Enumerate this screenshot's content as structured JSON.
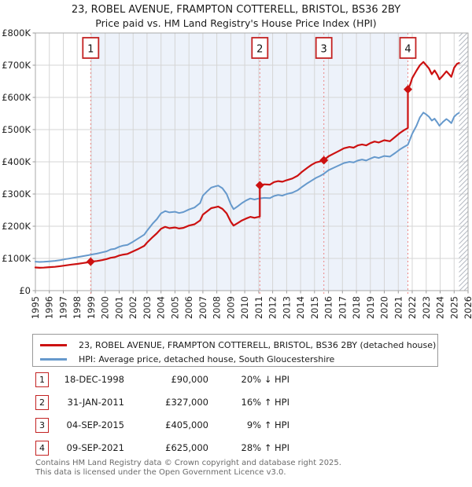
{
  "header": {
    "title_line1": "23, ROBEL AVENUE, FRAMPTON COTTERELL, BRISTOL, BS36 2BY",
    "title_line2": "Price paid vs. HM Land Registry's House Price Index (HPI)"
  },
  "legend": {
    "series1": "23, ROBEL AVENUE, FRAMPTON COTTERELL, BRISTOL, BS36 2BY (detached house)",
    "series2": "HPI: Average price, detached house, South Gloucestershire"
  },
  "transactions": [
    {
      "num": "1",
      "date": "18-DEC-1998",
      "price": "£90,000",
      "pct": "20% ↓ HPI"
    },
    {
      "num": "2",
      "date": "31-JAN-2011",
      "price": "£327,000",
      "pct": "16% ↑ HPI"
    },
    {
      "num": "3",
      "date": "04-SEP-2015",
      "price": "£405,000",
      "pct": "9% ↑ HPI"
    },
    {
      "num": "4",
      "date": "09-SEP-2021",
      "price": "£625,000",
      "pct": "28% ↑ HPI"
    }
  ],
  "footer": {
    "line1": "Contains HM Land Registry data © Crown copyright and database right 2025.",
    "line2": "This data is licensed under the Open Government Licence v3.0."
  },
  "chart_data": {
    "type": "line",
    "title": "23, ROBEL AVENUE, FRAMPTON COTTERELL, BRISTOL, BS36 2BY",
    "subtitle": "Price paid vs. HM Land Registry's House Price Index (HPI)",
    "xlim": [
      1995,
      2026
    ],
    "ylim": [
      0,
      800
    ],
    "grid": true,
    "x_ticks": [
      "1995",
      "1996",
      "1997",
      "1998",
      "1999",
      "2000",
      "2001",
      "2002",
      "2003",
      "2004",
      "2005",
      "2006",
      "2007",
      "2008",
      "2009",
      "2010",
      "2011",
      "2012",
      "2013",
      "2014",
      "2015",
      "2016",
      "2017",
      "2018",
      "2019",
      "2020",
      "2021",
      "2022",
      "2023",
      "2024",
      "2025",
      "2026"
    ],
    "y_ticks": [
      {
        "v": 0,
        "label": "£0"
      },
      {
        "v": 100,
        "label": "£100K"
      },
      {
        "v": 200,
        "label": "£200K"
      },
      {
        "v": 300,
        "label": "£300K"
      },
      {
        "v": 400,
        "label": "£400K"
      },
      {
        "v": 500,
        "label": "£500K"
      },
      {
        "v": 600,
        "label": "£600K"
      },
      {
        "v": 700,
        "label": "£700K"
      },
      {
        "v": 800,
        "label": "£800K"
      }
    ],
    "shaded_region": [
      1998.96,
      2021.69
    ],
    "hatch_region": [
      2025.35,
      2026
    ],
    "colors": {
      "price": "#cc1111",
      "hpi": "#6699cc",
      "sale_line": "#ec8585",
      "shade": "#edf2fa",
      "grid": "#d5d5d5",
      "border": "#a9a9a9",
      "hatch": "#b5bac2",
      "marker_box_border": "#c32222",
      "tick": "#999999",
      "label": "#222222"
    },
    "sales": [
      {
        "label": "1",
        "year": 1998.96,
        "value": 90,
        "date": "18-DEC-1998",
        "price_gbp": 90000
      },
      {
        "label": "2",
        "year": 2011.08,
        "value": 327,
        "date": "31-JAN-2011",
        "price_gbp": 327000
      },
      {
        "label": "3",
        "year": 2015.67,
        "value": 405,
        "date": "04-SEP-2015",
        "price_gbp": 405000
      },
      {
        "label": "4",
        "year": 2021.69,
        "value": 625,
        "date": "09-SEP-2021",
        "price_gbp": 625000
      }
    ],
    "series": [
      {
        "name": "hpi_average_price",
        "color": "#6699cc",
        "width": 2,
        "points": [
          [
            1995.0,
            90
          ],
          [
            1995.3,
            89
          ],
          [
            1995.6,
            89.5
          ],
          [
            1996.0,
            91
          ],
          [
            1996.4,
            92.5
          ],
          [
            1996.8,
            95
          ],
          [
            1997.2,
            98
          ],
          [
            1997.6,
            101
          ],
          [
            1998.0,
            104
          ],
          [
            1998.4,
            107
          ],
          [
            1998.8,
            110
          ],
          [
            1999.0,
            112
          ],
          [
            1999.4,
            115
          ],
          [
            1999.8,
            119
          ],
          [
            2000.1,
            122
          ],
          [
            2000.4,
            128
          ],
          [
            2000.7,
            130
          ],
          [
            2001.0,
            136
          ],
          [
            2001.3,
            140
          ],
          [
            2001.6,
            142
          ],
          [
            2002.0,
            152
          ],
          [
            2002.4,
            163
          ],
          [
            2002.8,
            174
          ],
          [
            2003.0,
            186
          ],
          [
            2003.4,
            208
          ],
          [
            2003.7,
            222
          ],
          [
            2004.0,
            240
          ],
          [
            2004.3,
            247
          ],
          [
            2004.6,
            243
          ],
          [
            2005.0,
            245
          ],
          [
            2005.3,
            241
          ],
          [
            2005.6,
            244
          ],
          [
            2006.0,
            252
          ],
          [
            2006.4,
            258
          ],
          [
            2006.8,
            272
          ],
          [
            2007.0,
            295
          ],
          [
            2007.3,
            308
          ],
          [
            2007.6,
            320
          ],
          [
            2007.9,
            324
          ],
          [
            2008.1,
            326
          ],
          [
            2008.4,
            318
          ],
          [
            2008.7,
            300
          ],
          [
            2009.0,
            268
          ],
          [
            2009.2,
            253
          ],
          [
            2009.5,
            262
          ],
          [
            2009.8,
            272
          ],
          [
            2010.1,
            280
          ],
          [
            2010.4,
            286
          ],
          [
            2010.7,
            283
          ],
          [
            2011.0,
            286
          ],
          [
            2011.4,
            288
          ],
          [
            2011.8,
            287
          ],
          [
            2012.1,
            294
          ],
          [
            2012.4,
            297
          ],
          [
            2012.7,
            295
          ],
          [
            2013.0,
            300
          ],
          [
            2013.4,
            304
          ],
          [
            2013.8,
            312
          ],
          [
            2014.1,
            322
          ],
          [
            2014.5,
            334
          ],
          [
            2014.8,
            342
          ],
          [
            2015.1,
            350
          ],
          [
            2015.4,
            356
          ],
          [
            2015.67,
            363
          ],
          [
            2016.0,
            374
          ],
          [
            2016.4,
            382
          ],
          [
            2016.8,
            390
          ],
          [
            2017.1,
            396
          ],
          [
            2017.5,
            400
          ],
          [
            2017.8,
            398
          ],
          [
            2018.1,
            404
          ],
          [
            2018.4,
            407
          ],
          [
            2018.7,
            404
          ],
          [
            2019.0,
            410
          ],
          [
            2019.3,
            415
          ],
          [
            2019.6,
            412
          ],
          [
            2020.0,
            418
          ],
          [
            2020.4,
            416
          ],
          [
            2020.8,
            428
          ],
          [
            2021.1,
            438
          ],
          [
            2021.4,
            446
          ],
          [
            2021.69,
            453
          ],
          [
            2022.0,
            487
          ],
          [
            2022.3,
            512
          ],
          [
            2022.55,
            538
          ],
          [
            2022.8,
            553
          ],
          [
            2023.0,
            547
          ],
          [
            2023.2,
            540
          ],
          [
            2023.4,
            528
          ],
          [
            2023.6,
            534
          ],
          [
            2023.8,
            522
          ],
          [
            2023.95,
            512
          ],
          [
            2024.2,
            524
          ],
          [
            2024.45,
            533
          ],
          [
            2024.6,
            528
          ],
          [
            2024.8,
            520
          ],
          [
            2025.0,
            540
          ],
          [
            2025.2,
            548
          ],
          [
            2025.35,
            552
          ]
        ]
      },
      {
        "name": "price_paid",
        "color": "#cc1111",
        "width": 2.2,
        "points": [
          [
            1995.0,
            72
          ],
          [
            1995.3,
            71
          ],
          [
            1995.6,
            71.5
          ],
          [
            1996.0,
            73
          ],
          [
            1996.4,
            74
          ],
          [
            1996.8,
            76
          ],
          [
            1997.2,
            78.5
          ],
          [
            1997.6,
            81
          ],
          [
            1998.0,
            83
          ],
          [
            1998.4,
            85.5
          ],
          [
            1998.8,
            88
          ],
          [
            1998.96,
            90
          ],
          [
            1999.4,
            92
          ],
          [
            1999.8,
            95
          ],
          [
            2000.1,
            98
          ],
          [
            2000.4,
            102
          ],
          [
            2000.7,
            104
          ],
          [
            2001.0,
            109
          ],
          [
            2001.3,
            112
          ],
          [
            2001.6,
            114
          ],
          [
            2002.0,
            122
          ],
          [
            2002.4,
            130
          ],
          [
            2002.8,
            139
          ],
          [
            2003.0,
            149
          ],
          [
            2003.4,
            166
          ],
          [
            2003.7,
            178
          ],
          [
            2004.0,
            192
          ],
          [
            2004.3,
            198
          ],
          [
            2004.6,
            194
          ],
          [
            2005.0,
            196
          ],
          [
            2005.3,
            193
          ],
          [
            2005.6,
            195
          ],
          [
            2006.0,
            202
          ],
          [
            2006.4,
            206
          ],
          [
            2006.8,
            218
          ],
          [
            2007.0,
            236
          ],
          [
            2007.3,
            246
          ],
          [
            2007.6,
            256
          ],
          [
            2007.9,
            259
          ],
          [
            2008.1,
            261
          ],
          [
            2008.4,
            254
          ],
          [
            2008.7,
            240
          ],
          [
            2009.0,
            214
          ],
          [
            2009.2,
            202
          ],
          [
            2009.5,
            210
          ],
          [
            2009.8,
            218
          ],
          [
            2010.1,
            224
          ],
          [
            2010.4,
            229
          ],
          [
            2010.7,
            226
          ],
          [
            2011.0,
            229
          ],
          [
            2011.08,
            230
          ],
          [
            2011.08,
            327
          ],
          [
            2011.4,
            330
          ],
          [
            2011.8,
            329
          ],
          [
            2012.1,
            337
          ],
          [
            2012.4,
            340
          ],
          [
            2012.7,
            338
          ],
          [
            2013.0,
            343
          ],
          [
            2013.4,
            348
          ],
          [
            2013.8,
            357
          ],
          [
            2014.1,
            369
          ],
          [
            2014.5,
            382
          ],
          [
            2014.8,
            391
          ],
          [
            2015.1,
            398
          ],
          [
            2015.4,
            401
          ],
          [
            2015.67,
            405
          ],
          [
            2016.0,
            417
          ],
          [
            2016.4,
            426
          ],
          [
            2016.8,
            435
          ],
          [
            2017.1,
            442
          ],
          [
            2017.5,
            446
          ],
          [
            2017.8,
            444
          ],
          [
            2018.1,
            451
          ],
          [
            2018.4,
            454
          ],
          [
            2018.7,
            451
          ],
          [
            2019.0,
            458
          ],
          [
            2019.3,
            463
          ],
          [
            2019.6,
            460
          ],
          [
            2020.0,
            467
          ],
          [
            2020.4,
            464
          ],
          [
            2020.8,
            478
          ],
          [
            2021.1,
            489
          ],
          [
            2021.4,
            498
          ],
          [
            2021.69,
            505
          ],
          [
            2021.69,
            625
          ],
          [
            2021.85,
            640
          ],
          [
            2022.0,
            660
          ],
          [
            2022.3,
            683
          ],
          [
            2022.55,
            700
          ],
          [
            2022.8,
            710
          ],
          [
            2023.0,
            700
          ],
          [
            2023.2,
            690
          ],
          [
            2023.4,
            672
          ],
          [
            2023.6,
            684
          ],
          [
            2023.8,
            670
          ],
          [
            2023.95,
            656
          ],
          [
            2024.2,
            668
          ],
          [
            2024.45,
            681
          ],
          [
            2024.6,
            674
          ],
          [
            2024.8,
            664
          ],
          [
            2025.0,
            692
          ],
          [
            2025.2,
            704
          ],
          [
            2025.35,
            707
          ]
        ]
      }
    ],
    "legend_position": "bottom"
  }
}
